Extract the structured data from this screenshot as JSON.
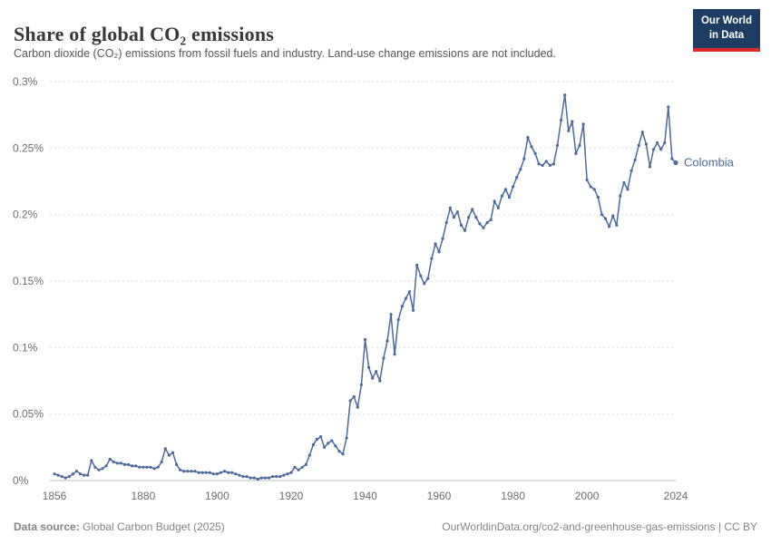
{
  "header": {
    "title": "Share of global CO₂ emissions",
    "subtitle": "Carbon dioxide (CO₂) emissions from fossil fuels and industry. Land-use change emissions are not included."
  },
  "logo": {
    "line1": "Our World",
    "line2": "in Data",
    "bg_color": "#1d3d63",
    "accent_color": "#dc2a2a"
  },
  "footer": {
    "source_label": "Data source:",
    "source_text": " Global Carbon Budget (2025)",
    "right_text": "OurWorldinData.org/co2-and-greenhouse-gas-emissions | CC BY"
  },
  "chart_data": {
    "type": "line",
    "title": "Share of global CO₂ emissions",
    "xlabel": "",
    "ylabel": "",
    "xlim": [
      1856,
      2024
    ],
    "ylim": [
      0,
      0.3
    ],
    "x_ticks": [
      1856,
      1880,
      1900,
      1920,
      1940,
      1960,
      1980,
      2000,
      2024
    ],
    "y_ticks": [
      0,
      0.05,
      0.1,
      0.15,
      0.2,
      0.25,
      0.3
    ],
    "y_tick_labels": [
      "0%",
      "0.05%",
      "0.1%",
      "0.15%",
      "0.2%",
      "0.25%",
      "0.3%"
    ],
    "grid": "horizontal-dashed",
    "legend": "end-of-line-label",
    "series": [
      {
        "name": "Colombia",
        "color": "#4c6a9c",
        "unit": "%",
        "points": [
          [
            1856,
            0.005
          ],
          [
            1857,
            0.004
          ],
          [
            1858,
            0.003
          ],
          [
            1859,
            0.002
          ],
          [
            1860,
            0.003
          ],
          [
            1861,
            0.005
          ],
          [
            1862,
            0.007
          ],
          [
            1863,
            0.005
          ],
          [
            1864,
            0.004
          ],
          [
            1865,
            0.004
          ],
          [
            1866,
            0.015
          ],
          [
            1867,
            0.01
          ],
          [
            1868,
            0.008
          ],
          [
            1869,
            0.009
          ],
          [
            1870,
            0.011
          ],
          [
            1871,
            0.016
          ],
          [
            1872,
            0.014
          ],
          [
            1873,
            0.013
          ],
          [
            1874,
            0.013
          ],
          [
            1875,
            0.012
          ],
          [
            1876,
            0.012
          ],
          [
            1877,
            0.011
          ],
          [
            1878,
            0.011
          ],
          [
            1879,
            0.01
          ],
          [
            1880,
            0.01
          ],
          [
            1881,
            0.01
          ],
          [
            1882,
            0.01
          ],
          [
            1883,
            0.009
          ],
          [
            1884,
            0.01
          ],
          [
            1885,
            0.014
          ],
          [
            1886,
            0.024
          ],
          [
            1887,
            0.019
          ],
          [
            1888,
            0.021
          ],
          [
            1889,
            0.012
          ],
          [
            1890,
            0.008
          ],
          [
            1891,
            0.007
          ],
          [
            1892,
            0.007
          ],
          [
            1893,
            0.007
          ],
          [
            1894,
            0.007
          ],
          [
            1895,
            0.006
          ],
          [
            1896,
            0.006
          ],
          [
            1897,
            0.006
          ],
          [
            1898,
            0.006
          ],
          [
            1899,
            0.005
          ],
          [
            1900,
            0.005
          ],
          [
            1901,
            0.006
          ],
          [
            1902,
            0.007
          ],
          [
            1903,
            0.006
          ],
          [
            1904,
            0.006
          ],
          [
            1905,
            0.005
          ],
          [
            1906,
            0.004
          ],
          [
            1907,
            0.003
          ],
          [
            1908,
            0.003
          ],
          [
            1909,
            0.002
          ],
          [
            1910,
            0.002
          ],
          [
            1911,
            0.001
          ],
          [
            1912,
            0.002
          ],
          [
            1913,
            0.002
          ],
          [
            1914,
            0.002
          ],
          [
            1915,
            0.003
          ],
          [
            1916,
            0.003
          ],
          [
            1917,
            0.003
          ],
          [
            1918,
            0.004
          ],
          [
            1919,
            0.005
          ],
          [
            1920,
            0.006
          ],
          [
            1921,
            0.01
          ],
          [
            1922,
            0.008
          ],
          [
            1923,
            0.01
          ],
          [
            1924,
            0.012
          ],
          [
            1925,
            0.019
          ],
          [
            1926,
            0.027
          ],
          [
            1927,
            0.031
          ],
          [
            1928,
            0.033
          ],
          [
            1929,
            0.025
          ],
          [
            1930,
            0.028
          ],
          [
            1931,
            0.03
          ],
          [
            1932,
            0.026
          ],
          [
            1933,
            0.022
          ],
          [
            1934,
            0.02
          ],
          [
            1935,
            0.032
          ],
          [
            1936,
            0.06
          ],
          [
            1937,
            0.063
          ],
          [
            1938,
            0.055
          ],
          [
            1939,
            0.072
          ],
          [
            1940,
            0.106
          ],
          [
            1941,
            0.085
          ],
          [
            1942,
            0.077
          ],
          [
            1943,
            0.082
          ],
          [
            1944,
            0.075
          ],
          [
            1945,
            0.092
          ],
          [
            1946,
            0.105
          ],
          [
            1947,
            0.125
          ],
          [
            1948,
            0.095
          ],
          [
            1949,
            0.121
          ],
          [
            1950,
            0.131
          ],
          [
            1951,
            0.137
          ],
          [
            1952,
            0.142
          ],
          [
            1953,
            0.128
          ],
          [
            1954,
            0.162
          ],
          [
            1955,
            0.154
          ],
          [
            1956,
            0.148
          ],
          [
            1957,
            0.152
          ],
          [
            1958,
            0.167
          ],
          [
            1959,
            0.178
          ],
          [
            1960,
            0.172
          ],
          [
            1961,
            0.182
          ],
          [
            1962,
            0.194
          ],
          [
            1963,
            0.205
          ],
          [
            1964,
            0.198
          ],
          [
            1965,
            0.202
          ],
          [
            1966,
            0.192
          ],
          [
            1967,
            0.188
          ],
          [
            1968,
            0.198
          ],
          [
            1969,
            0.204
          ],
          [
            1970,
            0.198
          ],
          [
            1971,
            0.193
          ],
          [
            1972,
            0.19
          ],
          [
            1973,
            0.194
          ],
          [
            1974,
            0.196
          ],
          [
            1975,
            0.21
          ],
          [
            1976,
            0.205
          ],
          [
            1977,
            0.214
          ],
          [
            1978,
            0.219
          ],
          [
            1979,
            0.213
          ],
          [
            1980,
            0.221
          ],
          [
            1981,
            0.228
          ],
          [
            1982,
            0.234
          ],
          [
            1983,
            0.242
          ],
          [
            1984,
            0.258
          ],
          [
            1985,
            0.251
          ],
          [
            1986,
            0.246
          ],
          [
            1987,
            0.238
          ],
          [
            1988,
            0.237
          ],
          [
            1989,
            0.24
          ],
          [
            1990,
            0.237
          ],
          [
            1991,
            0.238
          ],
          [
            1992,
            0.252
          ],
          [
            1993,
            0.271
          ],
          [
            1994,
            0.29
          ],
          [
            1995,
            0.263
          ],
          [
            1996,
            0.27
          ],
          [
            1997,
            0.246
          ],
          [
            1998,
            0.252
          ],
          [
            1999,
            0.268
          ],
          [
            2000,
            0.226
          ],
          [
            2001,
            0.221
          ],
          [
            2002,
            0.219
          ],
          [
            2003,
            0.213
          ],
          [
            2004,
            0.2
          ],
          [
            2005,
            0.197
          ],
          [
            2006,
            0.191
          ],
          [
            2007,
            0.199
          ],
          [
            2008,
            0.192
          ],
          [
            2009,
            0.214
          ],
          [
            2010,
            0.224
          ],
          [
            2011,
            0.219
          ],
          [
            2012,
            0.233
          ],
          [
            2013,
            0.241
          ],
          [
            2014,
            0.252
          ],
          [
            2015,
            0.262
          ],
          [
            2016,
            0.253
          ],
          [
            2017,
            0.236
          ],
          [
            2018,
            0.249
          ],
          [
            2019,
            0.254
          ],
          [
            2020,
            0.249
          ],
          [
            2021,
            0.254
          ],
          [
            2022,
            0.281
          ],
          [
            2023,
            0.242
          ],
          [
            2024,
            0.239
          ]
        ]
      }
    ]
  }
}
